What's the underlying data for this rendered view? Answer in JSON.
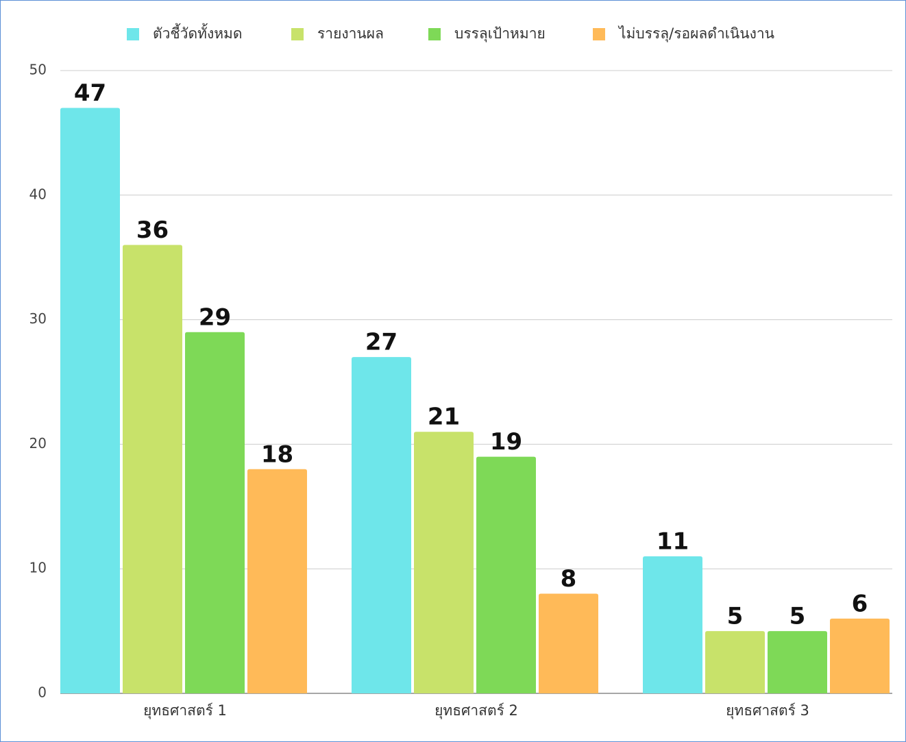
{
  "chart_data": {
    "type": "bar",
    "categories": [
      "ยุทธศาสตร์ 1",
      "ยุทธศาสตร์ 2",
      "ยุทธศาสตร์ 3"
    ],
    "series": [
      {
        "name": "ตัวชี้วัดทั้งหมด",
        "color": "#6ee6ea",
        "values": [
          47,
          27,
          11
        ]
      },
      {
        "name": "รายงานผล",
        "color": "#c8e26a",
        "values": [
          36,
          21,
          5
        ]
      },
      {
        "name": "บรรลุเป้าหมาย",
        "color": "#7ed957",
        "values": [
          29,
          19,
          5
        ]
      },
      {
        "name": "ไม่บรรลุ/รอผลดำเนินงาน",
        "color": "#ffba58",
        "values": [
          18,
          8,
          6
        ]
      }
    ],
    "ylim": [
      0,
      50
    ],
    "yticks": [
      0,
      10,
      20,
      30,
      40,
      50
    ],
    "grid": true,
    "legend": "top"
  }
}
